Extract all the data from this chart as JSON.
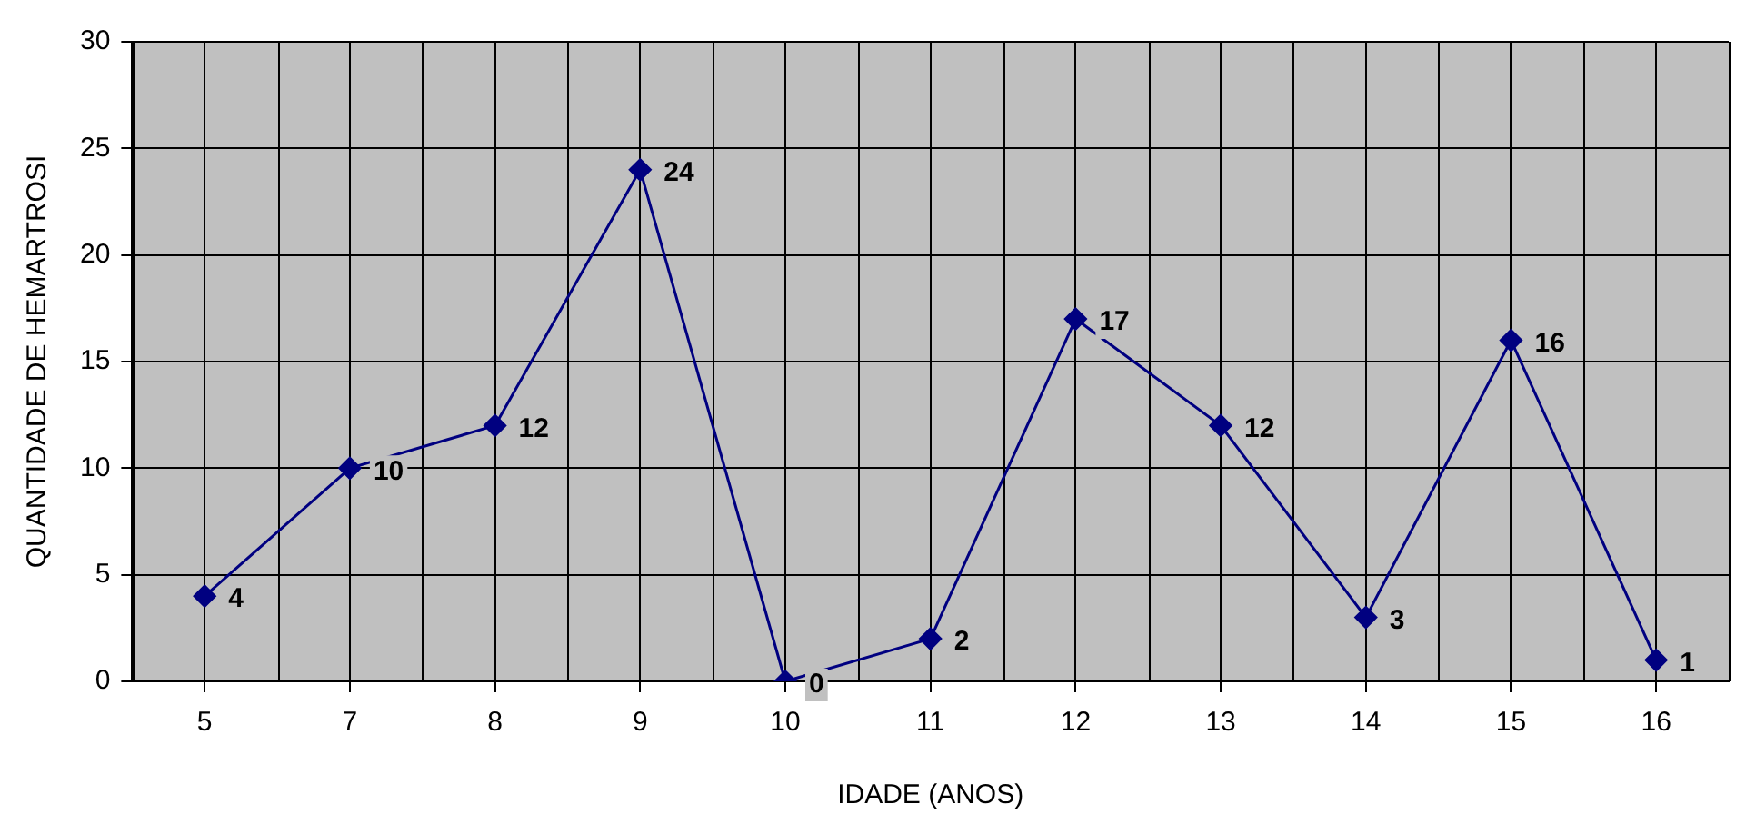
{
  "chart_data": {
    "type": "line",
    "xlabel": "IDADE (ANOS)",
    "ylabel": "QUANTIDADE DE HEMARTROSI",
    "categories": [
      "5",
      "7",
      "8",
      "9",
      "10",
      "11",
      "12",
      "13",
      "14",
      "15",
      "16"
    ],
    "series": [
      {
        "color": "#000080",
        "values": [
          4,
          10,
          12,
          24,
          0,
          2,
          17,
          12,
          3,
          16,
          1
        ]
      }
    ],
    "ylim": [
      0,
      30
    ],
    "yticks": [
      0,
      5,
      10,
      15,
      20,
      25,
      30
    ],
    "grid": true,
    "legend": false,
    "marker": "diamond",
    "line_style": "solid",
    "data_labels": true
  }
}
